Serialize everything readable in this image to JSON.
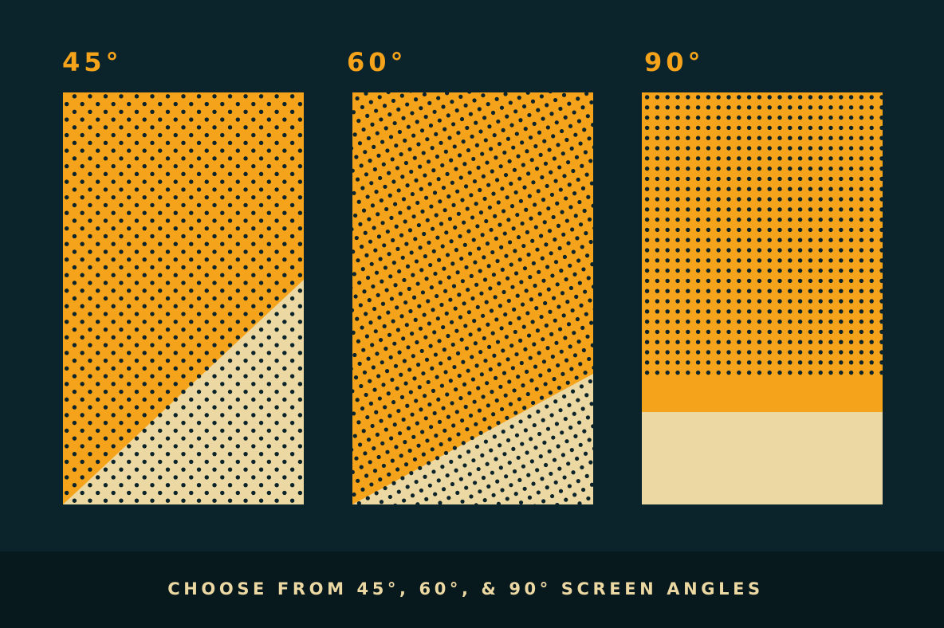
{
  "colors": {
    "background": "#0b242b",
    "footer_background": "#08191e",
    "orange": "#f5a31a",
    "cream": "#ecd8a2",
    "dot": "#0b242b"
  },
  "panels": [
    {
      "label": "45°",
      "screen_angle_deg": 45,
      "cream_region": "lower-right diagonal"
    },
    {
      "label": "60°",
      "screen_angle_deg": 60,
      "cream_region": "lower-right diagonal"
    },
    {
      "label": "90°",
      "screen_angle_deg": 90,
      "cream_region": "bottom band"
    }
  ],
  "footer": {
    "text": "CHOOSE FROM 45°, 60°, & 90° SCREEN ANGLES"
  }
}
